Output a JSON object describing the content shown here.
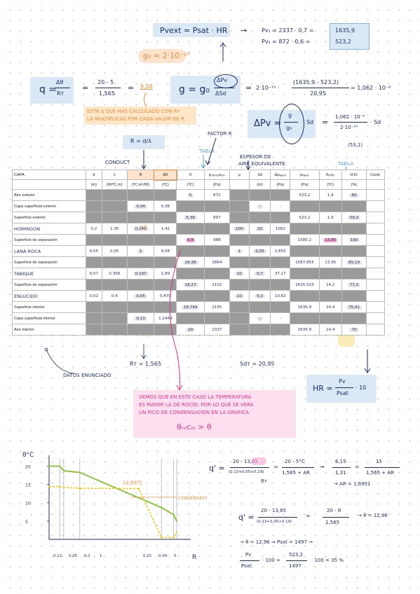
{
  "top": {
    "pvext_formula": "Pvext = Psat · HR",
    "arrow": "→",
    "pv1": "Pv₁ = 2337 · 0,7 =",
    "pv1_val": "1635,9",
    "pv2": "Pv₂ = 872 · 0,6 =",
    "pv2_val": "523,2",
    "g0": "g₀ = 2·10⁻¹⁰"
  },
  "q_formula": {
    "lhs": "q = ",
    "num": "Δθ",
    "den": "Rᴛ",
    "eq": "=",
    "num2": "20 - 5",
    "den2": "1,565",
    "eq2": "=",
    "result": "9,58"
  },
  "g_formula": {
    "lhs": "g = g₀",
    "num": "ΔPv",
    "den": "ΔSd",
    "eq": "=",
    "part": "2·10⁻¹⁰ ·",
    "num2": "(1635,9 - 523,2)",
    "den2": "20,95",
    "result": "= 1,062 · 10⁻⁸"
  },
  "orange_note": {
    "line1": "ESTA q QUE HAS CALCULADO CON Rᴛ",
    "line2": "LA MULTIPLICAS POR CADA VALOR DE R"
  },
  "r_formula": "R = d/λ",
  "dpv_formula": {
    "lhs": "ΔPv =",
    "num": "g",
    "den": "g₀",
    "mid": "· Sd",
    "eq": "=",
    "num2": "1,062 · 10⁻⁸",
    "den2": "2·10⁻¹⁰",
    "tail": "· Sd",
    "note": "(53,1)"
  },
  "labels": {
    "factor_r": "FACTOR R",
    "conduct": "CONDUCT",
    "tabla1": "TABLA",
    "espesor": "ESPESOR DE",
    "aire_eq": "AIRE EQUIVALENTE",
    "tabla2": "TABLA",
    "datos": "DATOS ENUNCIADO",
    "rt": "Rᴛ = 1,565",
    "sdt": "Sdᴛ = 20,95",
    "hr_formula": "HR =",
    "hr_num": "Pv",
    "hr_den": "Psat",
    "hr_tail": "· 10",
    "delta_label": "+0"
  },
  "table": {
    "headers1": [
      "CAPA",
      "d",
      "λ",
      "R",
      "Δθ",
      "θ",
      "pₛₐₜᵤᵣₐcᵢₒₙ",
      "μ",
      "Sd",
      "Δpᵥₐₚₒᵣ",
      "pᵥₐₚₒᵣ",
      "θᵣₒcᵢₒ",
      "H.R.",
      "Cond."
    ],
    "headers2": [
      "",
      "(m)",
      "(W/ºC.m)",
      "(ºC.m²/W)",
      "(ºC)",
      "(ºC)",
      "(Pa)",
      "",
      "(m)",
      "(Pa)",
      "(Pa)",
      "(ºC)",
      "(%)",
      ""
    ],
    "rows": [
      {
        "name": "Aire exterior",
        "theta": "5",
        "psat": "872",
        "pv": "523,2",
        "troc": "1,9",
        "hr": "60"
      },
      {
        "name": "Capa superficial exterior",
        "R": "0,04",
        "dt": "0,38",
        "sd": "-",
        "dpv": "-"
      },
      {
        "name": "Superficie exterior",
        "theta": "5,38",
        "psat": "897",
        "pv": "523,2",
        "troc": "1,9",
        "hr": "59,3"
      },
      {
        "name": "HORMIGON",
        "d": "0,2",
        "l": "1,35",
        "R": "0,148",
        "dt": "1,42",
        "mu": "100",
        "sd": "20",
        "dpv": "1062"
      },
      {
        "name": "Superficie de separación",
        "theta": "6,8",
        "psat": "988",
        "pv": "1585,2",
        "troc": "13,85",
        "hr": "160"
      },
      {
        "name": "LANA ROCA",
        "d": "0,05",
        "l": "0,05",
        "R": "1",
        "dt": "9,58",
        "mu": "1",
        "sd": "0,05",
        "dpv": "2,655"
      },
      {
        "name": "Superficie de separación",
        "theta": "16,38",
        "psat": "1864",
        "pv": "1587,855",
        "troc": "13,95",
        "hr": "85,19"
      },
      {
        "name": "TABIQUE",
        "d": "0,07",
        "l": "0,356",
        "R": "0,197",
        "dt": "1,89",
        "mu": "10",
        "sd": "0,7",
        "dpv": "37,17"
      },
      {
        "name": "Superficie de separación",
        "theta": "18,27",
        "psat": "2102",
        "pv": "1625,025",
        "troc": "14,2",
        "hr": "77,3"
      },
      {
        "name": "ENLUCIDO",
        "d": "0,02",
        "l": "0,4",
        "R": "0,05",
        "dt": "0,479",
        "mu": "10",
        "sd": "0,2",
        "dpv": "10,62"
      },
      {
        "name": "Superficie interior",
        "theta": "18,749",
        "psat": "2155",
        "pv": "1635,9",
        "troc": "14,4",
        "hr": "75,91"
      },
      {
        "name": "Capa superficial interior",
        "R": "0,13",
        "dt": "1,2449",
        "sd": "-",
        "dpv": "-"
      },
      {
        "name": "Aire interior",
        "theta": "20",
        "psat": "2337",
        "pv": "1635,9",
        "troc": "14,4",
        "hr": "70"
      }
    ]
  },
  "pink_note": {
    "line1": "VEMOS QUE EN ESTE CASO LA TEMPERATURA",
    "line2": "ES MAYOR LA DE ROCÍO; POR LO QUE SE VERÁ",
    "line3": "UN PICO DE CONDENSACION EN LA GRAFICA",
    "formula": "θᵣₒcᵢₒ > θ"
  },
  "chart_data": {
    "type": "line",
    "ylabel": "θ°C",
    "xlabel": "R",
    "yticks": [
      "20",
      "15",
      "10",
      "5"
    ],
    "xtick_labels": [
      "0,13",
      "0,05",
      "0,2",
      "1",
      "0,15",
      "0,04",
      "0"
    ],
    "annotation": "13,85°C",
    "annotation2": "CONDENSACION",
    "ylim": [
      0,
      22
    ],
    "series": [
      {
        "name": "θ",
        "color": "#8cc63f",
        "x": [
          0,
          0.13,
          0.18,
          0.377,
          1.377,
          1.525,
          1.565
        ],
        "y": [
          20,
          20,
          18.75,
          18.27,
          8.69,
          6.8,
          5
        ]
      },
      {
        "name": "θrocio",
        "color": "#f5c400",
        "x": [
          0,
          0.13,
          0.18,
          0.377,
          1.1,
          1.377,
          1.525,
          1.565
        ],
        "y": [
          14.4,
          14.4,
          14.2,
          13.95,
          13.85,
          0.5,
          0.5,
          1.9
        ]
      }
    ]
  },
  "right_calc": {
    "l1_lhs": "q' =",
    "l1_num": "20 - 13,85",
    "l1_den": "(0,13+0,05+0,19)",
    "l1_eq": "=",
    "l1_num2": "20 - 5°C",
    "l1_den2": "1,565 + AR",
    "l1_eq2": "→",
    "l1_num3": "6,15",
    "l1_den3": "1,31",
    "l1_eq3": "=",
    "l1_num4": "15",
    "l1_den4": "1,565 + AR",
    "rt": "Rᴛ",
    "ar": "→ AR = 1,6951",
    "l2_lhs": "q' =",
    "l2_num": "20 - 13,85",
    "l2_den": "(0,13+0,05+0,19)",
    "l2_eq": "=",
    "l2_num2": "20 - θ",
    "l2_den2": "1,565",
    "l2_res": "→ θ = 12,96",
    "l3": "→ θ = 12,96  ⇒ Psat = 1497 →",
    "l4_num": "Pv",
    "l4_den": "Psat",
    "l4_mid": "· 100 =",
    "l4_num2": "523,2",
    "l4_den2": "1497",
    "l4_tail": "· 100 = 35 %"
  }
}
